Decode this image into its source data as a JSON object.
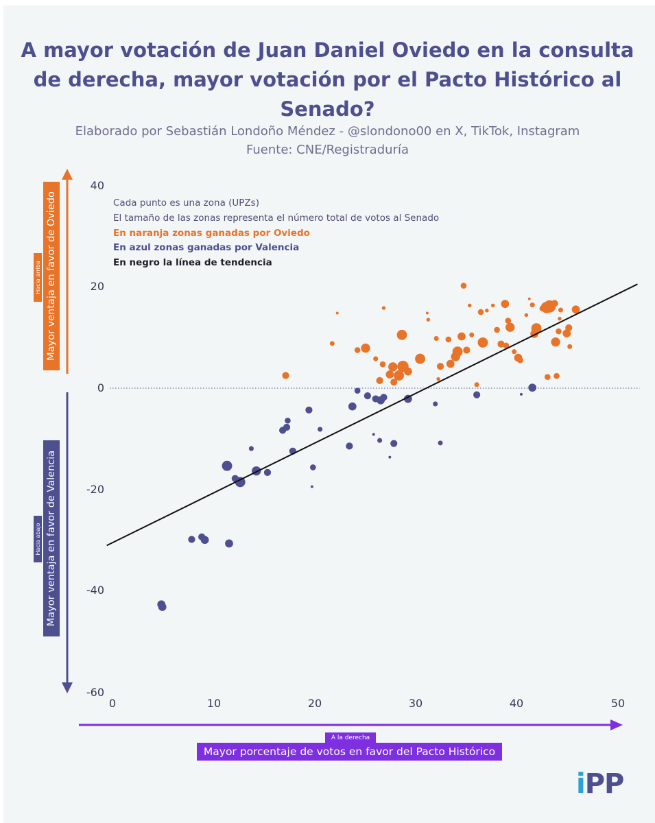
{
  "title": "A mayor votación de Juan Daniel Oviedo en la consulta de derecha, mayor votación por el Pacto Histórico al Senado?",
  "subtitle_line1": "Elaborado por Sebastián Londoño Méndez - @slondono00 en X, TikTok, Instagram",
  "subtitle_line2": "Fuente: CNE/Registraduría",
  "notes": {
    "line1": "Cada punto es una zona (UPZs)",
    "line2": "El tamaño de las zonas representa el número total de votos al Senado",
    "line3": "En naranja zonas ganadas por Oviedo",
    "line4": "En azul zonas ganadas por Valencia",
    "line5": "En negro la línea de tendencia"
  },
  "axis_labels": {
    "up_small": "Hacia arriba",
    "up_big": "Mayor ventaja en favor de Oviedo",
    "down_small": "Hacia abajo",
    "down_big": "Mayor ventaja en favor de Valencia",
    "right_small": "A la derecha",
    "right_big": "Mayor porcentaje de votos en favor del Pacto Histórico"
  },
  "logo": {
    "i": "i",
    "rest": "PP"
  },
  "colors": {
    "oviedo": "#e8742a",
    "valencia": "#4d4f8f",
    "trend": "#111111",
    "x_arrow": "#7e2fe0"
  },
  "chart_data": {
    "type": "scatter",
    "xlabel": "Mayor porcentaje de votos en favor del Pacto Histórico",
    "ylabel": "Mayor ventaja en favor de Oviedo / Mayor ventaja en favor de Valencia",
    "xlim": [
      0,
      52
    ],
    "ylim": [
      -60,
      40
    ],
    "xticks": [
      0,
      10,
      20,
      30,
      40,
      50
    ],
    "yticks": [
      40,
      20,
      0,
      -20,
      -40,
      -60
    ],
    "reference_line_y": 0,
    "trend_line": {
      "x": [
        -0.5,
        52
      ],
      "y": [
        -31,
        20.5
      ]
    },
    "series": [
      {
        "name": "En naranja zonas ganadas por Oviedo",
        "points": [
          {
            "x": 17.2,
            "y": 2.5,
            "s": 5
          },
          {
            "x": 21.8,
            "y": 8.8,
            "s": 3
          },
          {
            "x": 22.3,
            "y": 14.8,
            "s": 1
          },
          {
            "x": 24.3,
            "y": 7.5,
            "s": 4
          },
          {
            "x": 25.1,
            "y": 7.9,
            "s": 7
          },
          {
            "x": 26.1,
            "y": 5.8,
            "s": 3
          },
          {
            "x": 26.5,
            "y": 1.5,
            "s": 5
          },
          {
            "x": 26.8,
            "y": 4.7,
            "s": 4
          },
          {
            "x": 26.9,
            "y": 15.8,
            "s": 2
          },
          {
            "x": 27.5,
            "y": 2.7,
            "s": 6
          },
          {
            "x": 27.8,
            "y": 4.2,
            "s": 7
          },
          {
            "x": 27.9,
            "y": 1.2,
            "s": 5
          },
          {
            "x": 28.4,
            "y": 2.5,
            "s": 8
          },
          {
            "x": 28.7,
            "y": 10.5,
            "s": 8
          },
          {
            "x": 28.8,
            "y": 4.3,
            "s": 9
          },
          {
            "x": 29.3,
            "y": 3.3,
            "s": 6
          },
          {
            "x": 30.5,
            "y": 5.8,
            "s": 8
          },
          {
            "x": 31.2,
            "y": 14.8,
            "s": 1
          },
          {
            "x": 31.3,
            "y": 13.5,
            "s": 2
          },
          {
            "x": 32.1,
            "y": 9.8,
            "s": 3
          },
          {
            "x": 32.3,
            "y": 1.8,
            "s": 2
          },
          {
            "x": 32.5,
            "y": 4.3,
            "s": 5
          },
          {
            "x": 33.3,
            "y": 9.6,
            "s": 4
          },
          {
            "x": 33.5,
            "y": 4.8,
            "s": 6
          },
          {
            "x": 34.0,
            "y": 6.2,
            "s": 7
          },
          {
            "x": 34.2,
            "y": 7.2,
            "s": 8
          },
          {
            "x": 34.6,
            "y": 10.2,
            "s": 6
          },
          {
            "x": 34.8,
            "y": 20.2,
            "s": 4
          },
          {
            "x": 35.1,
            "y": 7.5,
            "s": 5
          },
          {
            "x": 35.4,
            "y": 16.3,
            "s": 2
          },
          {
            "x": 35.6,
            "y": 10.5,
            "s": 3
          },
          {
            "x": 36.1,
            "y": 0.7,
            "s": 3
          },
          {
            "x": 36.5,
            "y": 15.0,
            "s": 4
          },
          {
            "x": 36.7,
            "y": 9.0,
            "s": 8
          },
          {
            "x": 37.1,
            "y": 15.3,
            "s": 2
          },
          {
            "x": 37.7,
            "y": 16.3,
            "s": 2
          },
          {
            "x": 38.1,
            "y": 11.5,
            "s": 4
          },
          {
            "x": 38.5,
            "y": 8.7,
            "s": 5
          },
          {
            "x": 38.9,
            "y": 16.6,
            "s": 6
          },
          {
            "x": 39.0,
            "y": 8.4,
            "s": 4
          },
          {
            "x": 39.2,
            "y": 13.3,
            "s": 4
          },
          {
            "x": 39.4,
            "y": 12.0,
            "s": 7
          },
          {
            "x": 39.8,
            "y": 7.2,
            "s": 3
          },
          {
            "x": 40.2,
            "y": 6.0,
            "s": 6
          },
          {
            "x": 40.4,
            "y": 5.5,
            "s": 4
          },
          {
            "x": 41.0,
            "y": 14.4,
            "s": 2
          },
          {
            "x": 41.3,
            "y": 17.6,
            "s": 1
          },
          {
            "x": 41.6,
            "y": 16.4,
            "s": 3
          },
          {
            "x": 41.8,
            "y": 10.7,
            "s": 6
          },
          {
            "x": 42.0,
            "y": 11.8,
            "s": 8
          },
          {
            "x": 42.6,
            "y": 15.7,
            "s": 4
          },
          {
            "x": 43.0,
            "y": 15.9,
            "s": 9
          },
          {
            "x": 43.3,
            "y": 16.1,
            "s": 10
          },
          {
            "x": 43.1,
            "y": 2.2,
            "s": 4
          },
          {
            "x": 43.8,
            "y": 16.7,
            "s": 5
          },
          {
            "x": 43.9,
            "y": 9.1,
            "s": 7
          },
          {
            "x": 44.0,
            "y": 2.4,
            "s": 4
          },
          {
            "x": 44.2,
            "y": 11.2,
            "s": 4
          },
          {
            "x": 44.3,
            "y": 13.7,
            "s": 2
          },
          {
            "x": 44.4,
            "y": 15.4,
            "s": 3
          },
          {
            "x": 45.0,
            "y": 10.8,
            "s": 6
          },
          {
            "x": 45.2,
            "y": 11.9,
            "s": 5
          },
          {
            "x": 45.3,
            "y": 8.2,
            "s": 3
          },
          {
            "x": 45.9,
            "y": 15.5,
            "s": 6
          }
        ]
      },
      {
        "name": "En azul zonas ganadas por Valencia",
        "points": [
          {
            "x": 4.9,
            "y": -42.6,
            "s": 6
          },
          {
            "x": 5.0,
            "y": -43.1,
            "s": 6
          },
          {
            "x": 7.9,
            "y": -29.8,
            "s": 5
          },
          {
            "x": 8.9,
            "y": -29.3,
            "s": 5
          },
          {
            "x": 9.2,
            "y": -29.9,
            "s": 6
          },
          {
            "x": 11.4,
            "y": -15.3,
            "s": 8
          },
          {
            "x": 11.6,
            "y": -30.6,
            "s": 6
          },
          {
            "x": 12.2,
            "y": -17.8,
            "s": 5
          },
          {
            "x": 12.7,
            "y": -18.5,
            "s": 8
          },
          {
            "x": 13.8,
            "y": -11.9,
            "s": 3
          },
          {
            "x": 14.3,
            "y": -16.3,
            "s": 7
          },
          {
            "x": 15.4,
            "y": -16.6,
            "s": 5
          },
          {
            "x": 16.9,
            "y": -8.3,
            "s": 5
          },
          {
            "x": 17.3,
            "y": -7.7,
            "s": 5
          },
          {
            "x": 17.4,
            "y": -6.4,
            "s": 4
          },
          {
            "x": 17.9,
            "y": -12.4,
            "s": 5
          },
          {
            "x": 19.5,
            "y": -4.3,
            "s": 5
          },
          {
            "x": 19.8,
            "y": -19.4,
            "s": 1
          },
          {
            "x": 19.9,
            "y": -15.6,
            "s": 4
          },
          {
            "x": 20.6,
            "y": -8.1,
            "s": 3
          },
          {
            "x": 23.5,
            "y": -11.4,
            "s": 5
          },
          {
            "x": 23.8,
            "y": -3.6,
            "s": 6
          },
          {
            "x": 24.3,
            "y": -0.5,
            "s": 4
          },
          {
            "x": 25.3,
            "y": -1.5,
            "s": 5
          },
          {
            "x": 25.9,
            "y": -9.1,
            "s": 1
          },
          {
            "x": 26.1,
            "y": -2.1,
            "s": 5
          },
          {
            "x": 26.5,
            "y": -10.3,
            "s": 3
          },
          {
            "x": 26.6,
            "y": -2.4,
            "s": 6
          },
          {
            "x": 26.9,
            "y": -1.8,
            "s": 5
          },
          {
            "x": 27.5,
            "y": -13.6,
            "s": 1
          },
          {
            "x": 27.9,
            "y": -10.9,
            "s": 5
          },
          {
            "x": 29.3,
            "y": -2.1,
            "s": 6
          },
          {
            "x": 32.0,
            "y": -3.1,
            "s": 3
          },
          {
            "x": 32.5,
            "y": -10.8,
            "s": 3
          },
          {
            "x": 36.1,
            "y": -1.3,
            "s": 5
          },
          {
            "x": 40.5,
            "y": -1.2,
            "s": 1
          },
          {
            "x": 41.6,
            "y": 0.1,
            "s": 6
          }
        ]
      }
    ]
  }
}
